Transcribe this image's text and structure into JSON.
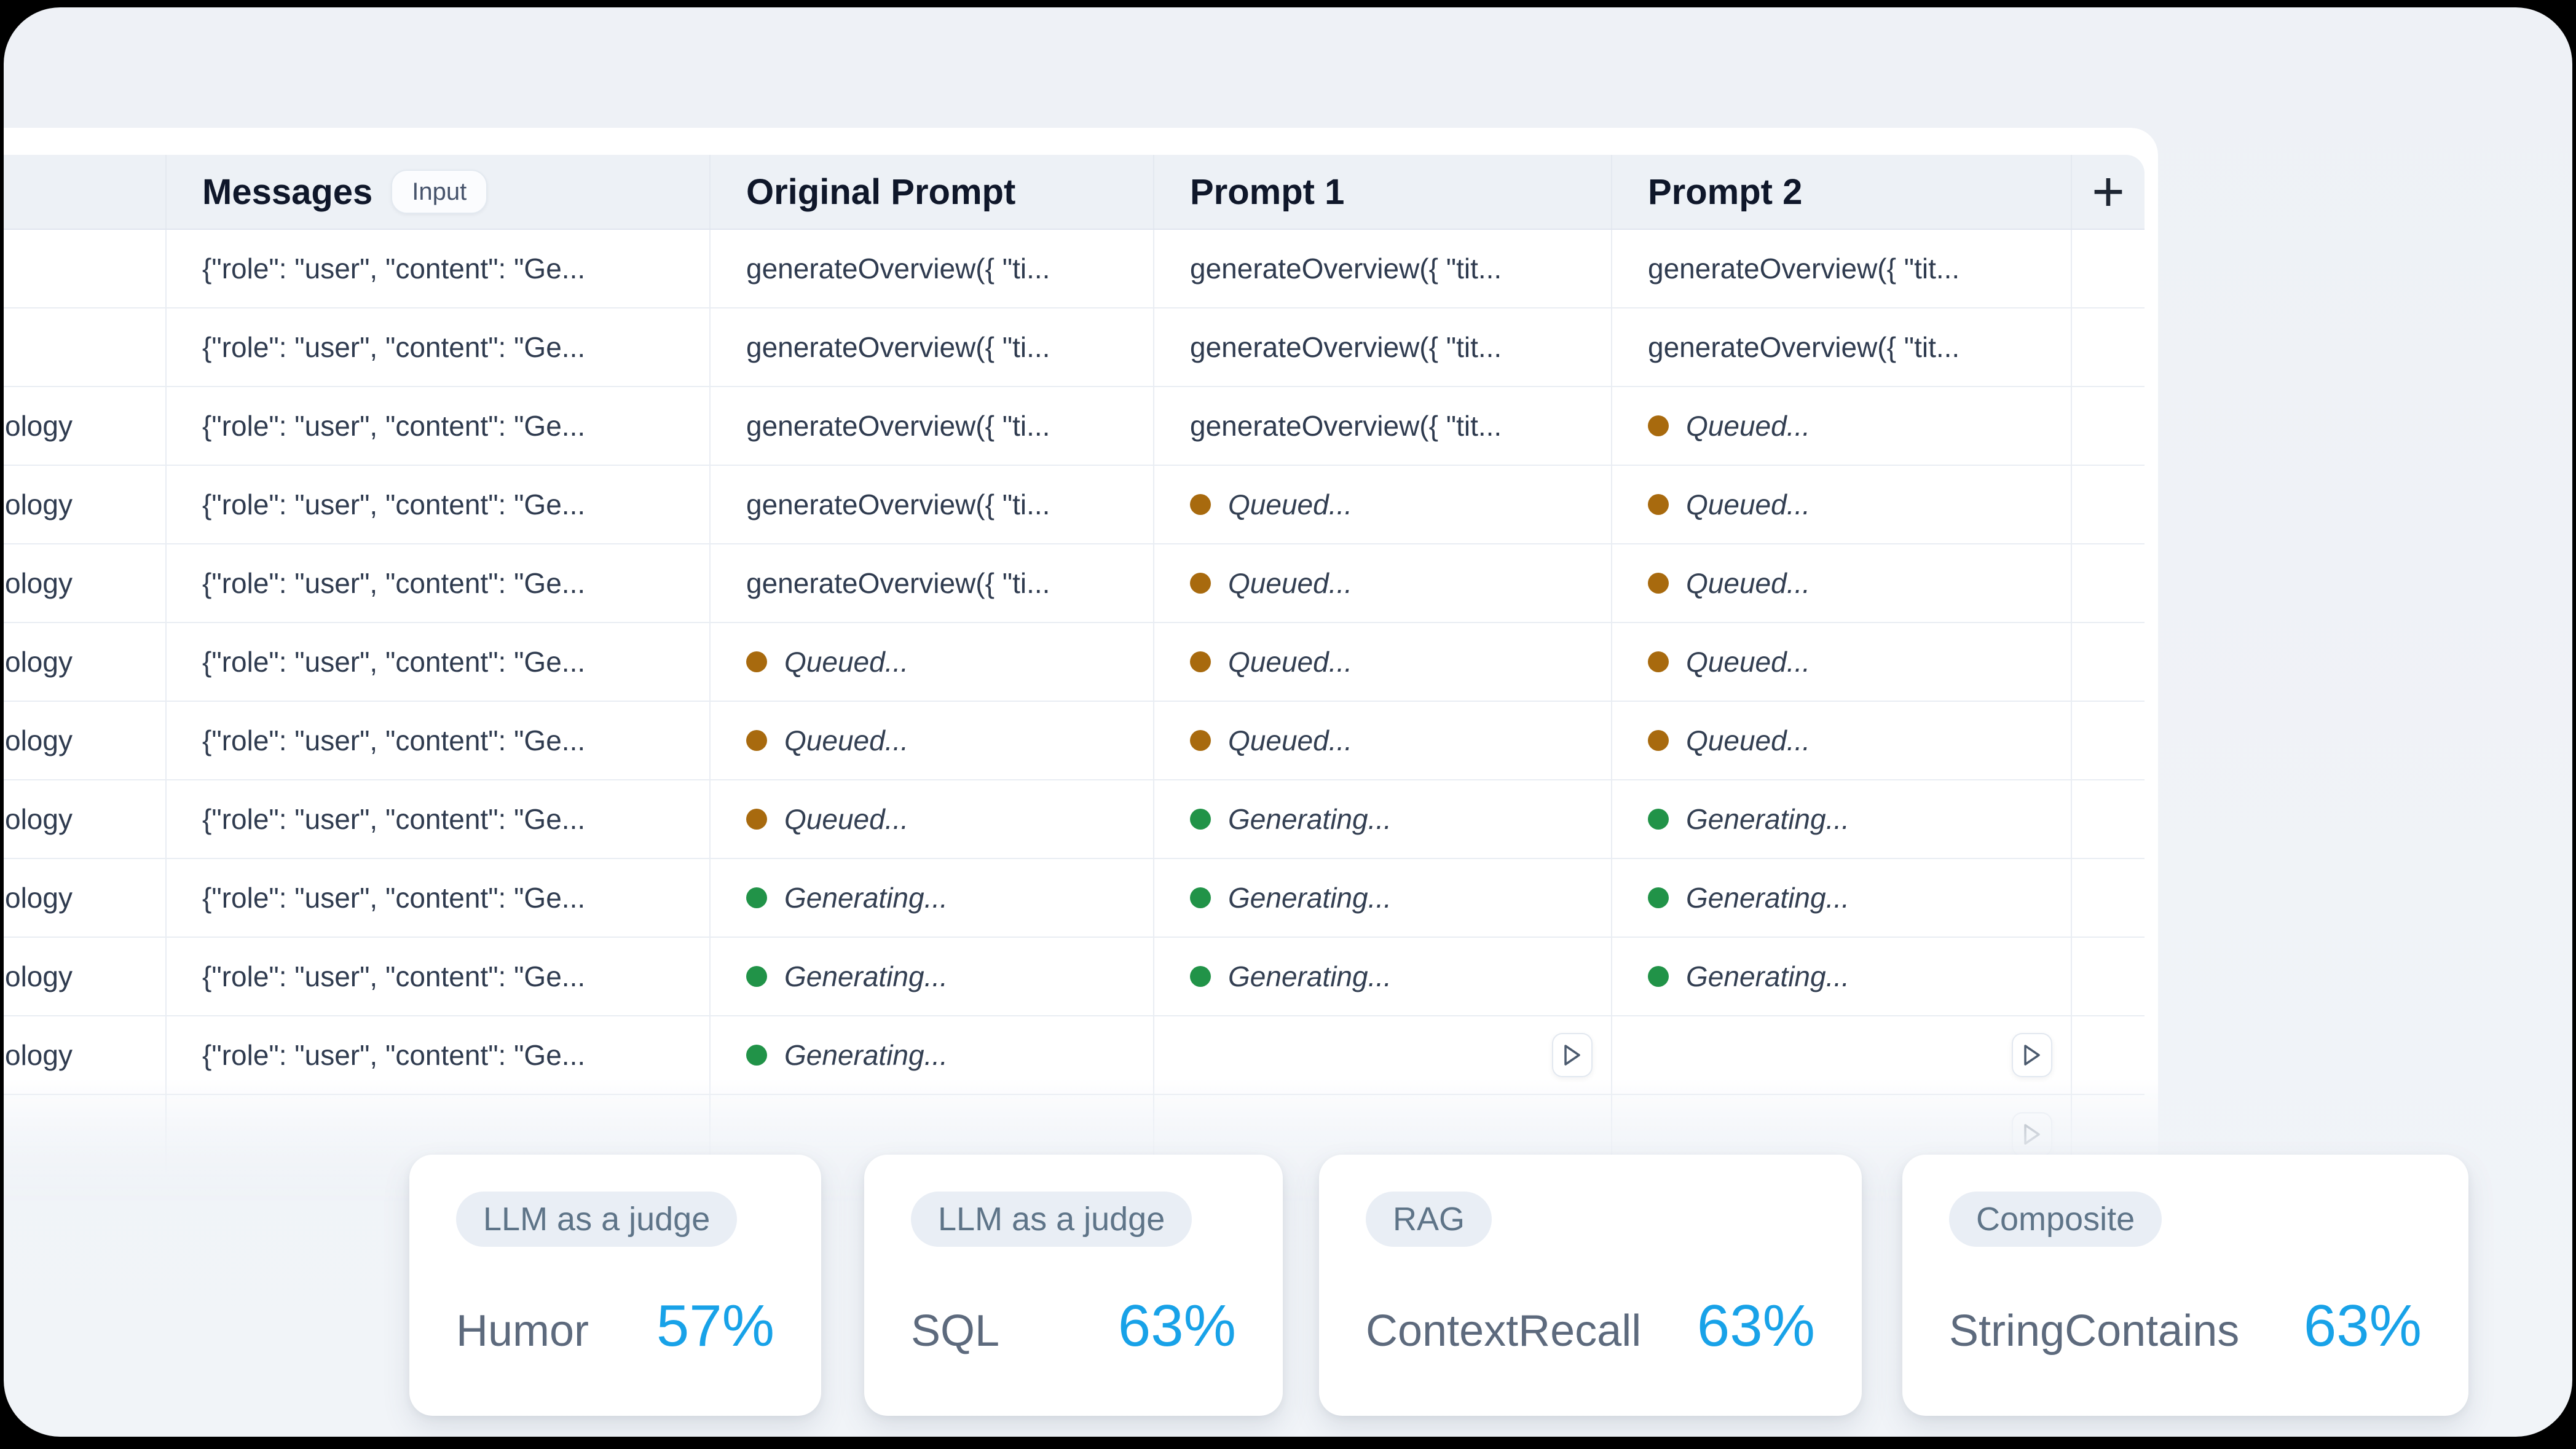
{
  "table": {
    "columns": [
      {
        "key": "dataset",
        "label": ""
      },
      {
        "key": "messages",
        "label": "Messages",
        "badge": "Input"
      },
      {
        "key": "original",
        "label": "Original Prompt"
      },
      {
        "key": "prompt1",
        "label": "Prompt 1"
      },
      {
        "key": "prompt2",
        "label": "Prompt 2"
      },
      {
        "key": "add",
        "label": "+"
      }
    ],
    "statuses": {
      "queued": {
        "label": "Queued...",
        "color": "#a86a0e"
      },
      "generating": {
        "label": "Generating...",
        "color": "#219348"
      }
    },
    "rows": [
      {
        "cells": [
          {
            "t": "empty"
          },
          {
            "t": "code",
            "v": "{\"role\": \"user\", \"content\": \"Ge..."
          },
          {
            "t": "code",
            "v": "generateOverview({ \"ti..."
          },
          {
            "t": "code",
            "v": "generateOverview({ \"tit..."
          },
          {
            "t": "code",
            "v": "generateOverview({ \"tit..."
          }
        ]
      },
      {
        "cells": [
          {
            "t": "empty"
          },
          {
            "t": "code",
            "v": "{\"role\": \"user\", \"content\": \"Ge..."
          },
          {
            "t": "code",
            "v": "generateOverview({ \"ti..."
          },
          {
            "t": "code",
            "v": "generateOverview({ \"tit..."
          },
          {
            "t": "code",
            "v": "generateOverview({ \"tit..."
          }
        ]
      },
      {
        "cells": [
          {
            "t": "text",
            "v": "ology"
          },
          {
            "t": "code",
            "v": "{\"role\": \"user\", \"content\": \"Ge..."
          },
          {
            "t": "code",
            "v": "generateOverview({ \"ti..."
          },
          {
            "t": "code",
            "v": "generateOverview({ \"tit..."
          },
          {
            "t": "status",
            "s": "queued"
          }
        ]
      },
      {
        "cells": [
          {
            "t": "text",
            "v": "ology"
          },
          {
            "t": "code",
            "v": "{\"role\": \"user\", \"content\": \"Ge..."
          },
          {
            "t": "code",
            "v": "generateOverview({ \"ti..."
          },
          {
            "t": "status",
            "s": "queued"
          },
          {
            "t": "status",
            "s": "queued"
          }
        ]
      },
      {
        "cells": [
          {
            "t": "text",
            "v": "ology"
          },
          {
            "t": "code",
            "v": "{\"role\": \"user\", \"content\": \"Ge..."
          },
          {
            "t": "code",
            "v": "generateOverview({ \"ti..."
          },
          {
            "t": "status",
            "s": "queued"
          },
          {
            "t": "status",
            "s": "queued"
          }
        ]
      },
      {
        "cells": [
          {
            "t": "text",
            "v": "ology"
          },
          {
            "t": "code",
            "v": "{\"role\": \"user\", \"content\": \"Ge..."
          },
          {
            "t": "status",
            "s": "queued"
          },
          {
            "t": "status",
            "s": "queued"
          },
          {
            "t": "status",
            "s": "queued"
          }
        ]
      },
      {
        "cells": [
          {
            "t": "text",
            "v": "ology"
          },
          {
            "t": "code",
            "v": "{\"role\": \"user\", \"content\": \"Ge..."
          },
          {
            "t": "status",
            "s": "queued"
          },
          {
            "t": "status",
            "s": "queued"
          },
          {
            "t": "status",
            "s": "queued"
          }
        ]
      },
      {
        "cells": [
          {
            "t": "text",
            "v": "ology"
          },
          {
            "t": "code",
            "v": "{\"role\": \"user\", \"content\": \"Ge..."
          },
          {
            "t": "status",
            "s": "queued"
          },
          {
            "t": "status",
            "s": "generating"
          },
          {
            "t": "status",
            "s": "generating"
          }
        ]
      },
      {
        "cells": [
          {
            "t": "text",
            "v": "ology"
          },
          {
            "t": "code",
            "v": "{\"role\": \"user\", \"content\": \"Ge..."
          },
          {
            "t": "status",
            "s": "generating"
          },
          {
            "t": "status",
            "s": "generating"
          },
          {
            "t": "status",
            "s": "generating"
          }
        ]
      },
      {
        "cells": [
          {
            "t": "text",
            "v": "ology"
          },
          {
            "t": "code",
            "v": "{\"role\": \"user\", \"content\": \"Ge..."
          },
          {
            "t": "status",
            "s": "generating"
          },
          {
            "t": "status",
            "s": "generating"
          },
          {
            "t": "status",
            "s": "generating"
          }
        ]
      },
      {
        "cells": [
          {
            "t": "text",
            "v": "ology"
          },
          {
            "t": "code",
            "v": "{\"role\": \"user\", \"content\": \"Ge..."
          },
          {
            "t": "status",
            "s": "generating"
          },
          {
            "t": "play"
          },
          {
            "t": "play"
          }
        ]
      },
      {
        "ghost": true,
        "cells": [
          {
            "t": "empty"
          },
          {
            "t": "empty"
          },
          {
            "t": "empty"
          },
          {
            "t": "empty"
          },
          {
            "t": "play"
          }
        ]
      }
    ]
  },
  "metrics": [
    {
      "badge": "LLM as a judge",
      "name": "Humor",
      "value": "57%"
    },
    {
      "badge": "LLM as a judge",
      "name": "SQL",
      "value": "63%"
    },
    {
      "badge": "RAG",
      "name": "ContextRecall",
      "value": "63%"
    },
    {
      "badge": "Composite",
      "name": "StringContains",
      "value": "63%"
    }
  ],
  "colors": {
    "accent_blue": "#18a2e8",
    "queued_amber": "#a86a0e",
    "generating_green": "#219348",
    "page_background": "#eef1f6",
    "header_background": "#edf1f6"
  }
}
